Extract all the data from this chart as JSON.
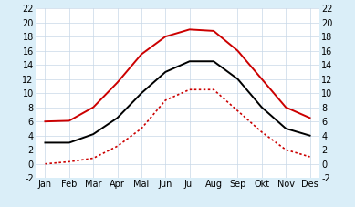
{
  "months": [
    "Jan",
    "Feb",
    "Mar",
    "Apr",
    "Mai",
    "Jun",
    "Jul",
    "Aug",
    "Sep",
    "Okt",
    "Nov",
    "Des"
  ],
  "red_solid": [
    6.0,
    6.1,
    8.0,
    11.5,
    15.5,
    18.0,
    19.0,
    18.8,
    16.0,
    12.0,
    8.0,
    6.5
  ],
  "black_solid": [
    3.0,
    3.0,
    4.2,
    6.5,
    10.0,
    13.0,
    14.5,
    14.5,
    12.0,
    8.0,
    5.0,
    4.0
  ],
  "red_dotted": [
    0.0,
    0.3,
    0.8,
    2.5,
    5.0,
    9.0,
    10.5,
    10.5,
    7.5,
    4.5,
    2.0,
    1.0
  ],
  "ylim": [
    -2,
    22
  ],
  "yticks": [
    -2,
    0,
    2,
    4,
    6,
    8,
    10,
    12,
    14,
    16,
    18,
    20,
    22
  ],
  "background_color": "#daeef8",
  "plot_bg": "#ffffff",
  "red_color": "#cc0000",
  "black_color": "#000000",
  "grid_color": "#c8d8e8",
  "tick_fontsize": 7.0
}
